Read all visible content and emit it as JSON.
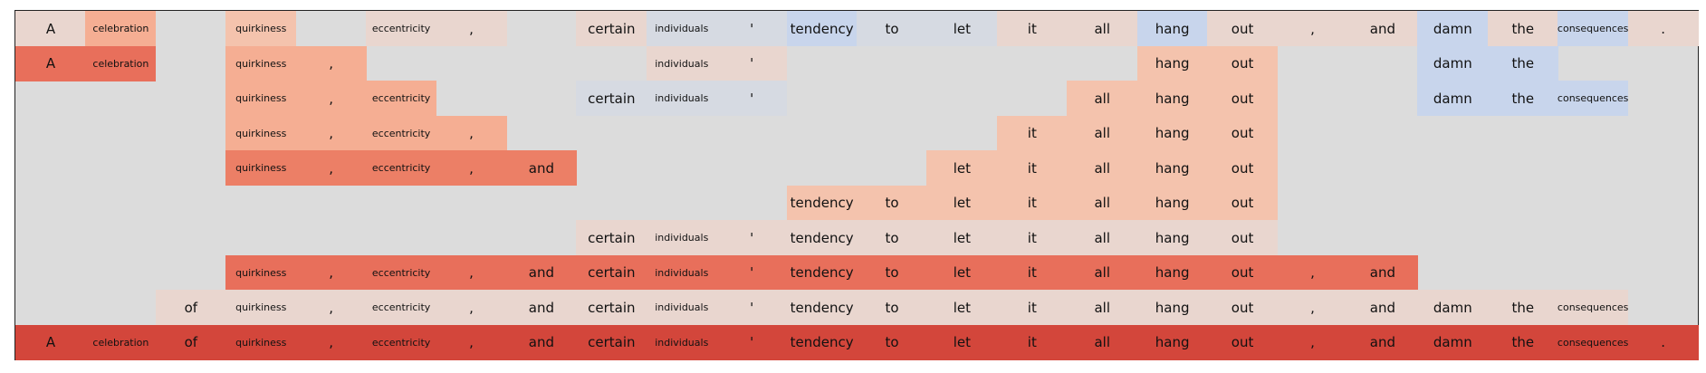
{
  "tokens": [
    "A",
    "celebration",
    "of",
    "quirkiness",
    ",",
    "eccentricity",
    ",",
    "and",
    "certain",
    "individuals",
    "'",
    "tendency",
    "to",
    "let",
    "it",
    "all",
    "hang",
    "out",
    ",",
    "and",
    "damn",
    "the",
    "consequences",
    "."
  ],
  "palette": {
    "background": "#dcdcdc",
    "pale_red": "#e9d6cf",
    "light_red": "#f4c3ad",
    "salmon": "#f5ae93",
    "red_medium": "#ec7f66",
    "red_strong": "#e86f5b",
    "red_darkest": "#d3463b",
    "blue_light": "#c8d5ec",
    "blue_grey": "#d6dae2"
  },
  "rows": [
    {
      "row": 0,
      "cells": [
        {
          "col": 0,
          "color": "pale_red"
        },
        {
          "col": 1,
          "color": "salmon"
        },
        {
          "col": 3,
          "color": "light_red"
        },
        {
          "col": 5,
          "color": "pale_red"
        },
        {
          "col": 6,
          "color": "pale_red"
        },
        {
          "col": 8,
          "color": "pale_red"
        },
        {
          "col": 9,
          "color": "blue_grey"
        },
        {
          "col": 10,
          "color": "blue_grey"
        },
        {
          "col": 11,
          "color": "blue_light"
        },
        {
          "col": 12,
          "color": "blue_grey"
        },
        {
          "col": 13,
          "color": "blue_grey"
        },
        {
          "col": 14,
          "color": "pale_red"
        },
        {
          "col": 15,
          "color": "pale_red"
        },
        {
          "col": 16,
          "color": "blue_light"
        },
        {
          "col": 17,
          "color": "pale_red"
        },
        {
          "col": 18,
          "color": "pale_red"
        },
        {
          "col": 19,
          "color": "pale_red"
        },
        {
          "col": 20,
          "color": "blue_light"
        },
        {
          "col": 21,
          "color": "pale_red"
        },
        {
          "col": 22,
          "color": "blue_light"
        },
        {
          "col": 23,
          "color": "pale_red"
        }
      ]
    },
    {
      "row": 1,
      "cells": [
        {
          "col": 0,
          "color": "red_strong"
        },
        {
          "col": 1,
          "color": "red_strong"
        },
        {
          "col": 3,
          "color": "salmon"
        },
        {
          "col": 4,
          "color": "salmon"
        },
        {
          "col": 9,
          "color": "pale_red"
        },
        {
          "col": 10,
          "color": "pale_red"
        },
        {
          "col": 16,
          "color": "light_red"
        },
        {
          "col": 17,
          "color": "light_red"
        },
        {
          "col": 20,
          "color": "blue_light"
        },
        {
          "col": 21,
          "color": "blue_light"
        }
      ]
    },
    {
      "row": 2,
      "cells": [
        {
          "col": 3,
          "color": "salmon"
        },
        {
          "col": 4,
          "color": "salmon"
        },
        {
          "col": 5,
          "color": "salmon"
        },
        {
          "col": 8,
          "color": "blue_grey"
        },
        {
          "col": 9,
          "color": "blue_grey"
        },
        {
          "col": 10,
          "color": "blue_grey"
        },
        {
          "col": 15,
          "color": "light_red"
        },
        {
          "col": 16,
          "color": "light_red"
        },
        {
          "col": 17,
          "color": "light_red"
        },
        {
          "col": 20,
          "color": "blue_light"
        },
        {
          "col": 21,
          "color": "blue_light"
        },
        {
          "col": 22,
          "color": "blue_light"
        }
      ]
    },
    {
      "row": 3,
      "cells": [
        {
          "col": 3,
          "color": "salmon"
        },
        {
          "col": 4,
          "color": "salmon"
        },
        {
          "col": 5,
          "color": "salmon"
        },
        {
          "col": 6,
          "color": "salmon"
        },
        {
          "col": 14,
          "color": "light_red"
        },
        {
          "col": 15,
          "color": "light_red"
        },
        {
          "col": 16,
          "color": "light_red"
        },
        {
          "col": 17,
          "color": "light_red"
        }
      ]
    },
    {
      "row": 4,
      "cells": [
        {
          "col": 3,
          "color": "red_medium"
        },
        {
          "col": 4,
          "color": "red_medium"
        },
        {
          "col": 5,
          "color": "red_medium"
        },
        {
          "col": 6,
          "color": "red_medium"
        },
        {
          "col": 7,
          "color": "red_medium"
        },
        {
          "col": 13,
          "color": "light_red"
        },
        {
          "col": 14,
          "color": "light_red"
        },
        {
          "col": 15,
          "color": "light_red"
        },
        {
          "col": 16,
          "color": "light_red"
        },
        {
          "col": 17,
          "color": "light_red"
        }
      ]
    },
    {
      "row": 5,
      "cells": [
        {
          "col": 11,
          "color": "light_red"
        },
        {
          "col": 12,
          "color": "light_red"
        },
        {
          "col": 13,
          "color": "light_red"
        },
        {
          "col": 14,
          "color": "light_red"
        },
        {
          "col": 15,
          "color": "light_red"
        },
        {
          "col": 16,
          "color": "light_red"
        },
        {
          "col": 17,
          "color": "light_red"
        }
      ]
    },
    {
      "row": 6,
      "cells": [
        {
          "col": 8,
          "color": "pale_red"
        },
        {
          "col": 9,
          "color": "pale_red"
        },
        {
          "col": 10,
          "color": "pale_red"
        },
        {
          "col": 11,
          "color": "pale_red"
        },
        {
          "col": 12,
          "color": "pale_red"
        },
        {
          "col": 13,
          "color": "pale_red"
        },
        {
          "col": 14,
          "color": "pale_red"
        },
        {
          "col": 15,
          "color": "pale_red"
        },
        {
          "col": 16,
          "color": "pale_red"
        },
        {
          "col": 17,
          "color": "pale_red"
        }
      ]
    },
    {
      "row": 7,
      "cells": [
        {
          "col": 3,
          "color": "red_strong"
        },
        {
          "col": 4,
          "color": "red_strong"
        },
        {
          "col": 5,
          "color": "red_strong"
        },
        {
          "col": 6,
          "color": "red_strong"
        },
        {
          "col": 7,
          "color": "red_strong"
        },
        {
          "col": 8,
          "color": "red_strong"
        },
        {
          "col": 9,
          "color": "red_strong"
        },
        {
          "col": 10,
          "color": "red_strong"
        },
        {
          "col": 11,
          "color": "red_strong"
        },
        {
          "col": 12,
          "color": "red_strong"
        },
        {
          "col": 13,
          "color": "red_strong"
        },
        {
          "col": 14,
          "color": "red_strong"
        },
        {
          "col": 15,
          "color": "red_strong"
        },
        {
          "col": 16,
          "color": "red_strong"
        },
        {
          "col": 17,
          "color": "red_strong"
        },
        {
          "col": 18,
          "color": "red_strong"
        },
        {
          "col": 19,
          "color": "red_strong"
        }
      ]
    },
    {
      "row": 8,
      "cells": [
        {
          "col": 2,
          "color": "pale_red"
        },
        {
          "col": 3,
          "color": "pale_red"
        },
        {
          "col": 4,
          "color": "pale_red"
        },
        {
          "col": 5,
          "color": "pale_red"
        },
        {
          "col": 6,
          "color": "pale_red"
        },
        {
          "col": 7,
          "color": "pale_red"
        },
        {
          "col": 8,
          "color": "pale_red"
        },
        {
          "col": 9,
          "color": "pale_red"
        },
        {
          "col": 10,
          "color": "pale_red"
        },
        {
          "col": 11,
          "color": "pale_red"
        },
        {
          "col": 12,
          "color": "pale_red"
        },
        {
          "col": 13,
          "color": "pale_red"
        },
        {
          "col": 14,
          "color": "pale_red"
        },
        {
          "col": 15,
          "color": "pale_red"
        },
        {
          "col": 16,
          "color": "pale_red"
        },
        {
          "col": 17,
          "color": "pale_red"
        },
        {
          "col": 18,
          "color": "pale_red"
        },
        {
          "col": 19,
          "color": "pale_red"
        },
        {
          "col": 20,
          "color": "pale_red"
        },
        {
          "col": 21,
          "color": "pale_red"
        },
        {
          "col": 22,
          "color": "pale_red"
        }
      ]
    },
    {
      "row": 9,
      "cells": [
        {
          "col": 0,
          "color": "red_darkest"
        },
        {
          "col": 1,
          "color": "red_darkest"
        },
        {
          "col": 2,
          "color": "red_darkest"
        },
        {
          "col": 3,
          "color": "red_darkest"
        },
        {
          "col": 4,
          "color": "red_darkest"
        },
        {
          "col": 5,
          "color": "red_darkest"
        },
        {
          "col": 6,
          "color": "red_darkest"
        },
        {
          "col": 7,
          "color": "red_darkest"
        },
        {
          "col": 8,
          "color": "red_darkest"
        },
        {
          "col": 9,
          "color": "red_darkest"
        },
        {
          "col": 10,
          "color": "red_darkest"
        },
        {
          "col": 11,
          "color": "red_darkest"
        },
        {
          "col": 12,
          "color": "red_darkest"
        },
        {
          "col": 13,
          "color": "red_darkest"
        },
        {
          "col": 14,
          "color": "red_darkest"
        },
        {
          "col": 15,
          "color": "red_darkest"
        },
        {
          "col": 16,
          "color": "red_darkest"
        },
        {
          "col": 17,
          "color": "red_darkest"
        },
        {
          "col": 18,
          "color": "red_darkest"
        },
        {
          "col": 19,
          "color": "red_darkest"
        },
        {
          "col": 20,
          "color": "red_darkest"
        },
        {
          "col": 21,
          "color": "red_darkest"
        },
        {
          "col": 22,
          "color": "red_darkest"
        },
        {
          "col": 23,
          "color": "red_darkest"
        }
      ]
    }
  ]
}
